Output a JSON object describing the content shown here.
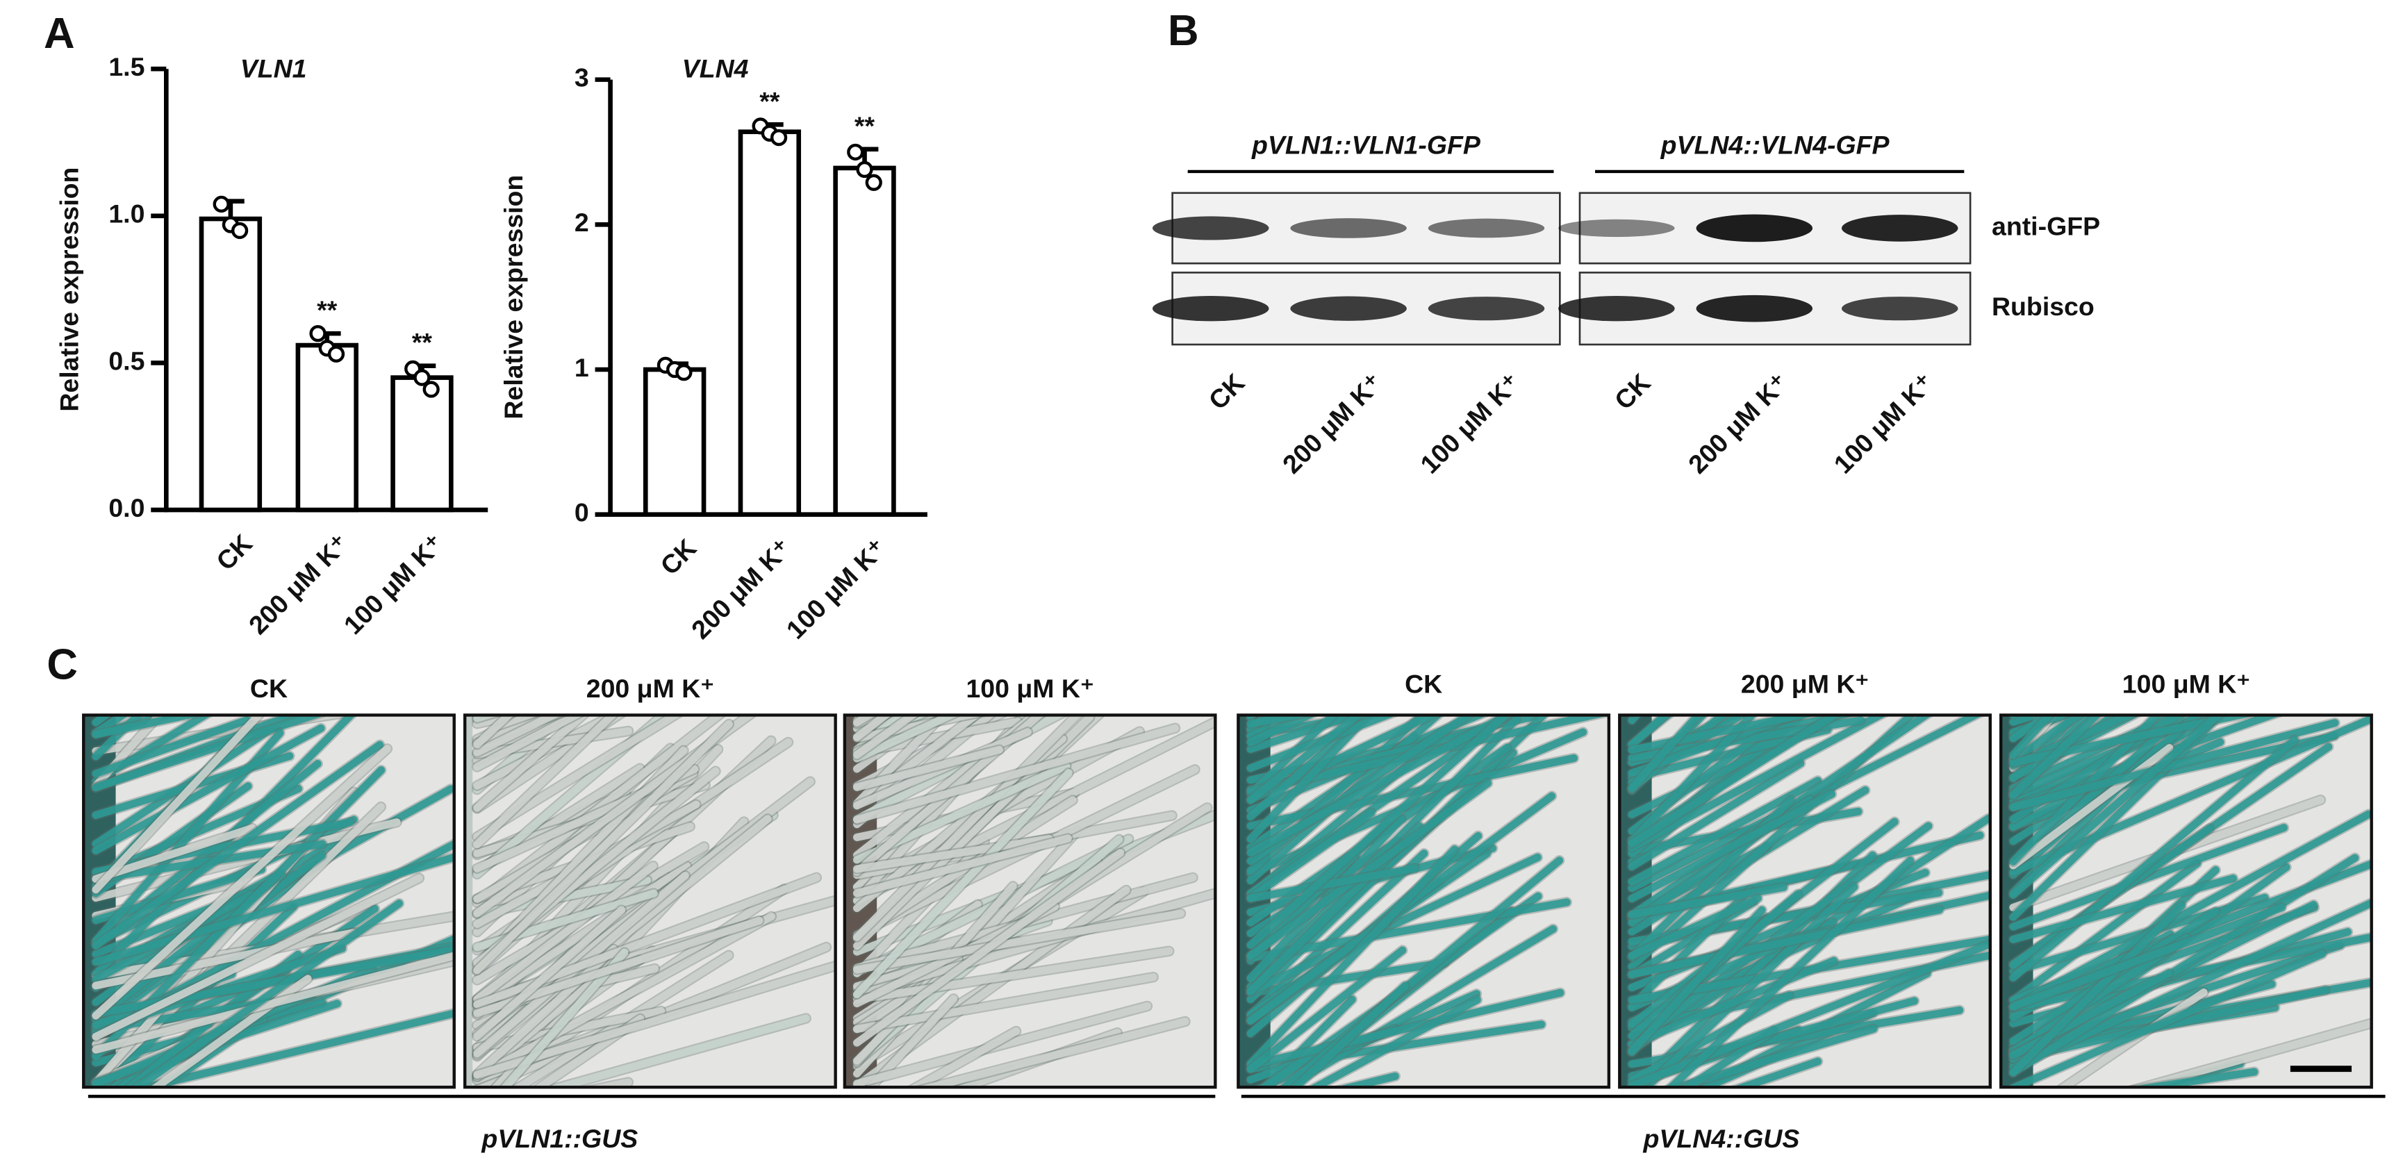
{
  "panel_labels": [
    "A",
    "B",
    "C"
  ],
  "chart_data": [
    {
      "type": "bar",
      "title": "VLN1",
      "y_label": "Relative expression",
      "categories": [
        "CK",
        "200 μM K⁺",
        "100 μM K⁺"
      ],
      "values": [
        0.99,
        0.56,
        0.45
      ],
      "errors": [
        0.06,
        0.04,
        0.04
      ],
      "replicates": [
        [
          1.04,
          0.97,
          0.95
        ],
        [
          0.6,
          0.55,
          0.53
        ],
        [
          0.48,
          0.45,
          0.41
        ]
      ],
      "annotations": [
        null,
        "**",
        "**"
      ],
      "color": "#ffffff",
      "ylim": [
        0,
        1.5
      ],
      "yticks": [
        {
          "value": 0,
          "label": "0.0"
        },
        0.5,
        {
          "value": 1,
          "label": "1.0"
        },
        1.5
      ]
    },
    {
      "type": "bar",
      "title": "VLN4",
      "y_label": "Relative expression",
      "categories": [
        "CK",
        "200 μM K⁺",
        "100 μM K⁺"
      ],
      "values": [
        1.0,
        2.64,
        2.39
      ],
      "errors": [
        0.04,
        0.05,
        0.13
      ],
      "replicates": [
        [
          1.03,
          1.0,
          0.98
        ],
        [
          2.68,
          2.63,
          2.6
        ],
        [
          2.5,
          2.38,
          2.29
        ]
      ],
      "annotations": [
        null,
        "**",
        "**"
      ],
      "color": "#ffffff",
      "ylim": [
        0,
        3
      ],
      "yticks": [
        0,
        1,
        2,
        3
      ]
    }
  ],
  "blot": {
    "constructs": [
      "pVLN1::VLN1-GFP",
      "pVLN4::VLN4-GFP"
    ],
    "rows": [
      "anti-GFP",
      "Rubisco"
    ],
    "lanes": [
      "CK",
      "200 μM K⁺",
      "100 μM K⁺",
      "CK",
      "200 μM K⁺",
      "100 μM K⁺"
    ]
  },
  "gus": {
    "conditions": [
      "CK",
      "200 μM K⁺",
      "100 μM K⁺",
      "CK",
      "200 μM K⁺",
      "100 μM K⁺"
    ],
    "reporters": [
      "pVLN1::GUS",
      "pVLN4::GUS"
    ]
  }
}
